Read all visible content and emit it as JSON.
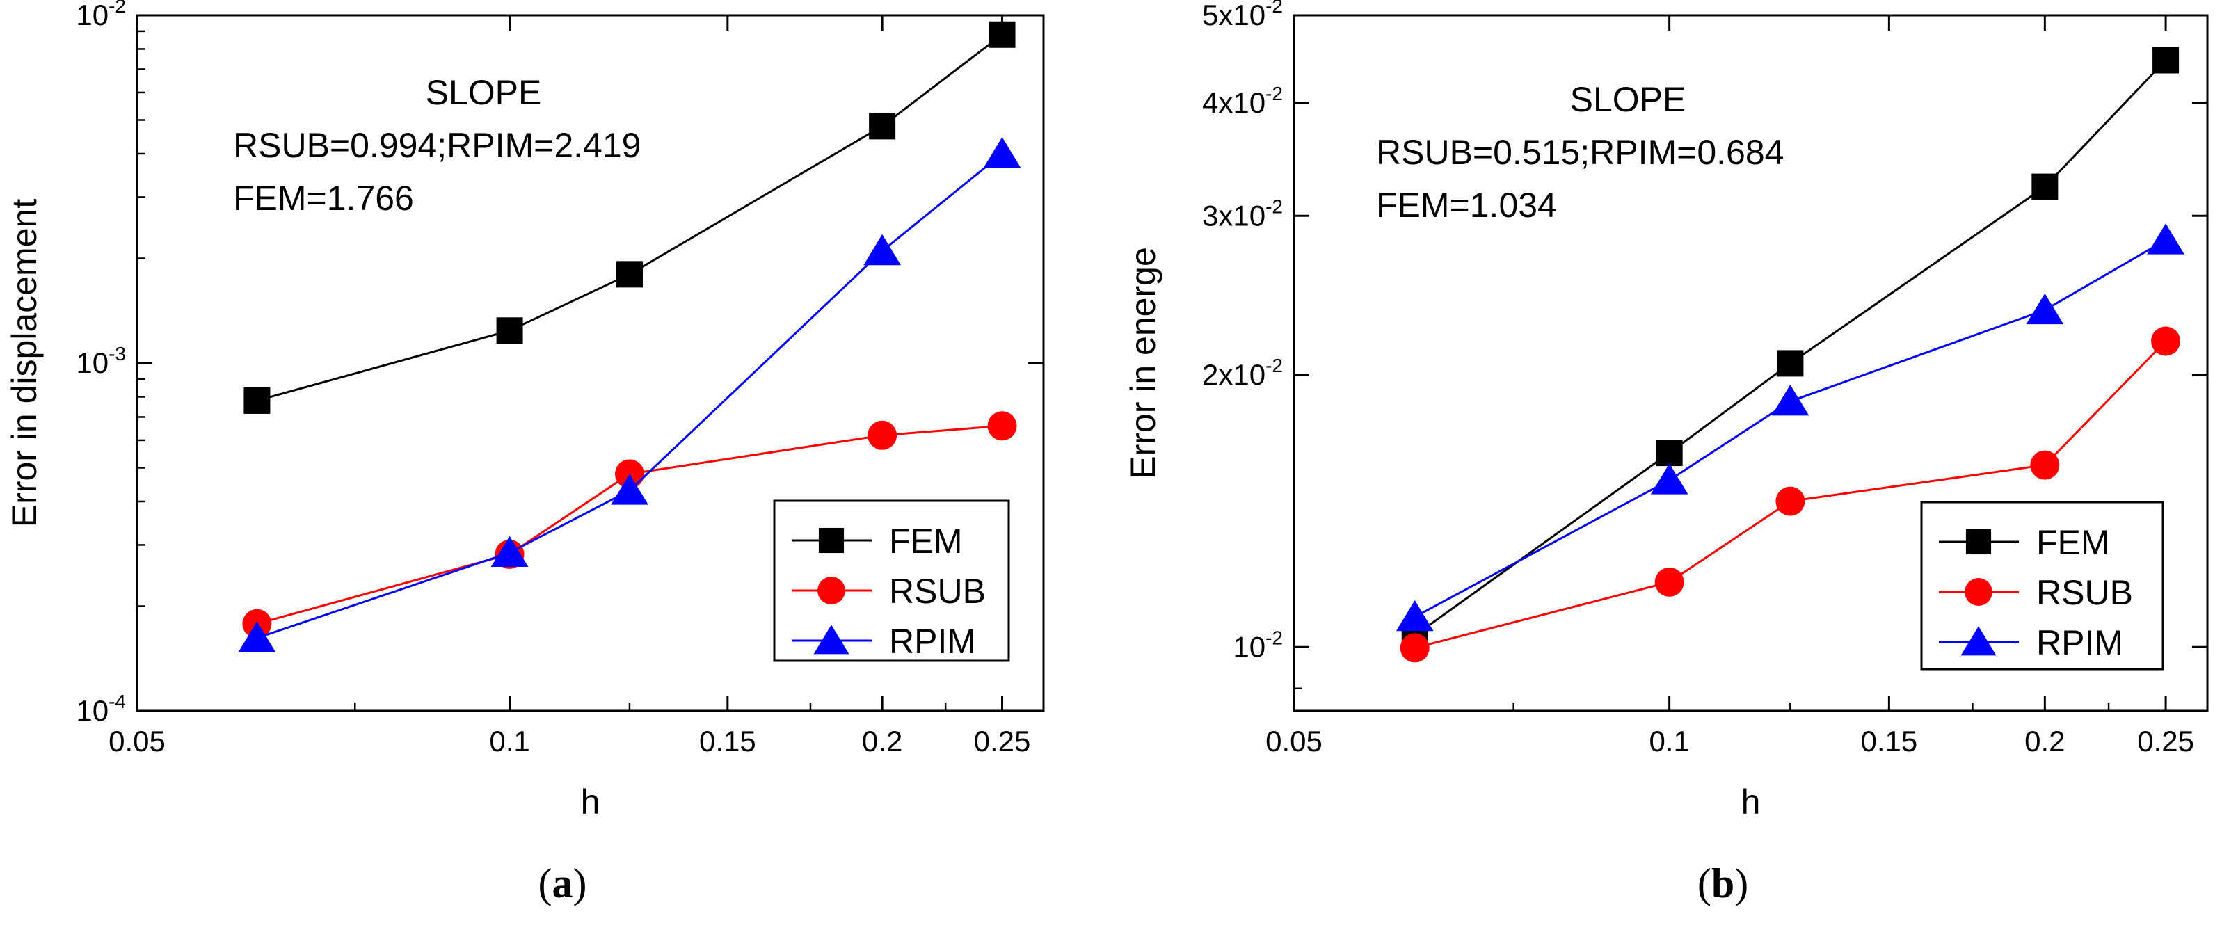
{
  "colors": {
    "FEM": "#000000",
    "RSUB": "#ff0000",
    "RPIM": "#0000ff",
    "axis": "#000000",
    "background": "#ffffff"
  },
  "chart_data": [
    {
      "type": "line",
      "panel_label": "(a)",
      "panel_label_letter": "a",
      "xscale": "log",
      "yscale": "log",
      "xlabel": "h",
      "ylabel": "Error in displacement",
      "xlim": [
        0.05,
        0.27
      ],
      "ylim": [
        0.0001,
        0.01
      ],
      "xticks": [
        0.05,
        0.1,
        0.15,
        0.2,
        0.25
      ],
      "xtick_labels": [
        "0.05",
        "0.1",
        "0.15",
        "0.2",
        "0.25"
      ],
      "yticks": [
        {
          "value": 0.0001,
          "base": "10",
          "exp": "-4"
        },
        {
          "value": 0.001,
          "base": "10",
          "exp": "-3"
        },
        {
          "value": 0.01,
          "base": "10",
          "exp": "-2"
        }
      ],
      "annotation": [
        "SLOPE",
        "RSUB=0.994;RPIM=2.419",
        "FEM=1.766"
      ],
      "legend": {
        "position": "bottom-right",
        "entries": [
          "FEM",
          "RSUB",
          "RPIM"
        ]
      },
      "series": [
        {
          "name": "FEM",
          "marker": "square",
          "x": [
            0.0625,
            0.1,
            0.125,
            0.2,
            0.25
          ],
          "y": [
            0.00078,
            0.00124,
            0.0018,
            0.0048,
            0.0088
          ]
        },
        {
          "name": "RSUB",
          "marker": "circle",
          "x": [
            0.0625,
            0.1,
            0.125,
            0.2,
            0.25
          ],
          "y": [
            0.000178,
            0.000282,
            0.00048,
            0.00062,
            0.00066
          ]
        },
        {
          "name": "RPIM",
          "marker": "triangle",
          "x": [
            0.0625,
            0.1,
            0.125,
            0.2,
            0.25
          ],
          "y": [
            0.000162,
            0.000285,
            0.00043,
            0.0021,
            0.004
          ]
        }
      ]
    },
    {
      "type": "line",
      "panel_label": "(b)",
      "panel_label_letter": "b",
      "xscale": "log",
      "yscale": "log",
      "xlabel": "h",
      "ylabel": "Error in energe",
      "xlim": [
        0.05,
        0.27
      ],
      "ylim": [
        0.0085,
        0.05
      ],
      "xticks": [
        0.05,
        0.1,
        0.15,
        0.2,
        0.25
      ],
      "xtick_labels": [
        "0.05",
        "0.1",
        "0.15",
        "0.2",
        "0.25"
      ],
      "yticks": [
        {
          "value": 0.01,
          "base": "10",
          "exp": "-2"
        },
        {
          "value": 0.02,
          "base": "2x10",
          "exp": "-2"
        },
        {
          "value": 0.03,
          "base": "3x10",
          "exp": "-2"
        },
        {
          "value": 0.04,
          "base": "4x10",
          "exp": "-2"
        },
        {
          "value": 0.05,
          "base": "5x10",
          "exp": "-2"
        }
      ],
      "annotation": [
        "SLOPE",
        "RSUB=0.515;RPIM=0.684",
        "FEM=1.034"
      ],
      "legend": {
        "position": "bottom-right",
        "entries": [
          "FEM",
          "RSUB",
          "RPIM"
        ]
      },
      "series": [
        {
          "name": "FEM",
          "marker": "square",
          "x": [
            0.0625,
            0.1,
            0.125,
            0.2,
            0.25
          ],
          "y": [
            0.0103,
            0.0164,
            0.0206,
            0.0323,
            0.0446
          ]
        },
        {
          "name": "RSUB",
          "marker": "circle",
          "x": [
            0.0625,
            0.1,
            0.125,
            0.2,
            0.25
          ],
          "y": [
            0.00998,
            0.0118,
            0.0145,
            0.0159,
            0.0218
          ]
        },
        {
          "name": "RPIM",
          "marker": "triangle",
          "x": [
            0.0625,
            0.1,
            0.125,
            0.2,
            0.25
          ],
          "y": [
            0.0108,
            0.0153,
            0.0187,
            0.0236,
            0.0282
          ]
        }
      ]
    }
  ]
}
